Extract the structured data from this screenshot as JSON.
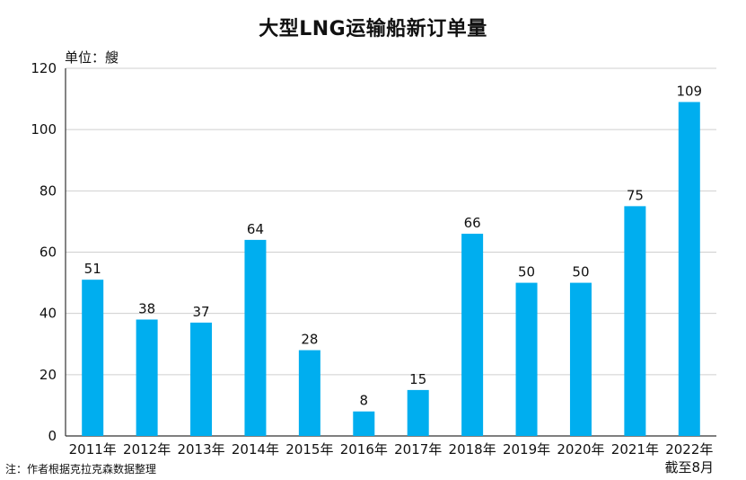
{
  "chart_data": {
    "type": "bar",
    "title": "大型LNG运输船新订单量",
    "unit_label": "单位：艘",
    "note": "注：作者根据克拉克森数据整理",
    "categories": [
      "2011年",
      "2012年",
      "2013年",
      "2014年",
      "2015年",
      "2016年",
      "2017年",
      "2018年",
      "2019年",
      "2020年",
      "2021年",
      "2022年"
    ],
    "category_sublabels": [
      "",
      "",
      "",
      "",
      "",
      "",
      "",
      "",
      "",
      "",
      "",
      "截至8月"
    ],
    "values": [
      51,
      38,
      37,
      64,
      28,
      8,
      15,
      66,
      50,
      50,
      75,
      109
    ],
    "ylim": [
      0,
      120
    ],
    "yticks": [
      0,
      20,
      40,
      60,
      80,
      100,
      120
    ],
    "grid": true,
    "bar_color": "#00AEEF"
  }
}
